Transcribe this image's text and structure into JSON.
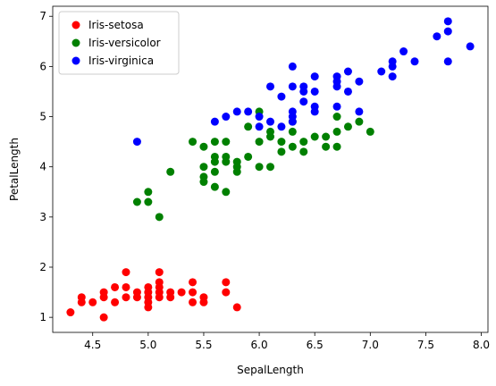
{
  "chart_data": {
    "type": "scatter",
    "title": "",
    "xlabel": "SepalLength",
    "ylabel": "PetalLength",
    "xlim": [
      4.14,
      8.06
    ],
    "ylim": [
      0.7,
      7.2
    ],
    "xticks": [
      "4.5",
      "5.0",
      "5.5",
      "6.0",
      "6.5",
      "7.0",
      "7.5",
      "8.0"
    ],
    "yticks": [
      "1",
      "2",
      "3",
      "4",
      "5",
      "6",
      "7"
    ],
    "grid": false,
    "legend": {
      "position": "top-left"
    },
    "series": [
      {
        "name": "Iris-setosa",
        "color": "#ff0000",
        "points": [
          [
            4.3,
            1.1
          ],
          [
            4.4,
            1.3
          ],
          [
            4.4,
            1.4
          ],
          [
            4.5,
            1.3
          ],
          [
            4.6,
            1.0
          ],
          [
            4.6,
            1.4
          ],
          [
            4.6,
            1.5
          ],
          [
            4.7,
            1.3
          ],
          [
            4.7,
            1.6
          ],
          [
            4.8,
            1.4
          ],
          [
            4.8,
            1.6
          ],
          [
            4.8,
            1.9
          ],
          [
            4.9,
            1.4
          ],
          [
            4.9,
            1.5
          ],
          [
            5.0,
            1.2
          ],
          [
            5.0,
            1.3
          ],
          [
            5.0,
            1.4
          ],
          [
            5.0,
            1.5
          ],
          [
            5.0,
            1.6
          ],
          [
            5.1,
            1.4
          ],
          [
            5.1,
            1.5
          ],
          [
            5.1,
            1.6
          ],
          [
            5.1,
            1.7
          ],
          [
            5.1,
            1.9
          ],
          [
            5.2,
            1.4
          ],
          [
            5.2,
            1.5
          ],
          [
            5.3,
            1.5
          ],
          [
            5.4,
            1.3
          ],
          [
            5.4,
            1.5
          ],
          [
            5.4,
            1.7
          ],
          [
            5.5,
            1.3
          ],
          [
            5.5,
            1.4
          ],
          [
            5.7,
            1.5
          ],
          [
            5.7,
            1.7
          ],
          [
            5.8,
            1.2
          ]
        ]
      },
      {
        "name": "Iris-versicolor",
        "color": "#008000",
        "points": [
          [
            4.9,
            3.3
          ],
          [
            5.0,
            3.3
          ],
          [
            5.0,
            3.5
          ],
          [
            5.1,
            3.0
          ],
          [
            5.2,
            3.9
          ],
          [
            5.4,
            4.5
          ],
          [
            5.5,
            3.7
          ],
          [
            5.5,
            3.8
          ],
          [
            5.5,
            4.0
          ],
          [
            5.5,
            4.4
          ],
          [
            5.6,
            3.6
          ],
          [
            5.6,
            3.9
          ],
          [
            5.6,
            4.1
          ],
          [
            5.6,
            4.2
          ],
          [
            5.6,
            4.5
          ],
          [
            5.7,
            3.5
          ],
          [
            5.7,
            4.1
          ],
          [
            5.7,
            4.2
          ],
          [
            5.7,
            4.5
          ],
          [
            5.8,
            3.9
          ],
          [
            5.8,
            4.0
          ],
          [
            5.8,
            4.1
          ],
          [
            5.9,
            4.2
          ],
          [
            5.9,
            4.8
          ],
          [
            6.0,
            4.0
          ],
          [
            6.0,
            4.5
          ],
          [
            6.0,
            5.1
          ],
          [
            6.1,
            4.0
          ],
          [
            6.1,
            4.6
          ],
          [
            6.1,
            4.7
          ],
          [
            6.2,
            4.3
          ],
          [
            6.2,
            4.5
          ],
          [
            6.3,
            4.4
          ],
          [
            6.3,
            4.7
          ],
          [
            6.3,
            4.9
          ],
          [
            6.4,
            4.3
          ],
          [
            6.4,
            4.5
          ],
          [
            6.5,
            4.6
          ],
          [
            6.6,
            4.4
          ],
          [
            6.6,
            4.6
          ],
          [
            6.7,
            4.4
          ],
          [
            6.7,
            4.7
          ],
          [
            6.7,
            5.0
          ],
          [
            6.8,
            4.8
          ],
          [
            6.9,
            4.9
          ],
          [
            7.0,
            4.7
          ]
        ]
      },
      {
        "name": "Iris-virginica",
        "color": "#0000ff",
        "points": [
          [
            4.9,
            4.5
          ],
          [
            5.6,
            4.9
          ],
          [
            5.7,
            5.0
          ],
          [
            5.8,
            5.1
          ],
          [
            5.9,
            5.1
          ],
          [
            6.0,
            4.8
          ],
          [
            6.0,
            5.0
          ],
          [
            6.1,
            4.9
          ],
          [
            6.1,
            5.6
          ],
          [
            6.2,
            4.8
          ],
          [
            6.2,
            5.4
          ],
          [
            6.3,
            4.9
          ],
          [
            6.3,
            5.0
          ],
          [
            6.3,
            5.1
          ],
          [
            6.3,
            5.6
          ],
          [
            6.3,
            6.0
          ],
          [
            6.4,
            5.3
          ],
          [
            6.4,
            5.5
          ],
          [
            6.4,
            5.6
          ],
          [
            6.5,
            5.1
          ],
          [
            6.5,
            5.2
          ],
          [
            6.5,
            5.5
          ],
          [
            6.5,
            5.8
          ],
          [
            6.7,
            5.2
          ],
          [
            6.7,
            5.6
          ],
          [
            6.7,
            5.7
          ],
          [
            6.7,
            5.8
          ],
          [
            6.8,
            5.5
          ],
          [
            6.8,
            5.9
          ],
          [
            6.9,
            5.1
          ],
          [
            6.9,
            5.7
          ],
          [
            7.1,
            5.9
          ],
          [
            7.2,
            5.8
          ],
          [
            7.2,
            6.0
          ],
          [
            7.2,
            6.1
          ],
          [
            7.3,
            6.3
          ],
          [
            7.4,
            6.1
          ],
          [
            7.6,
            6.6
          ],
          [
            7.7,
            6.1
          ],
          [
            7.7,
            6.7
          ],
          [
            7.7,
            6.9
          ],
          [
            7.9,
            6.4
          ]
        ]
      }
    ]
  }
}
